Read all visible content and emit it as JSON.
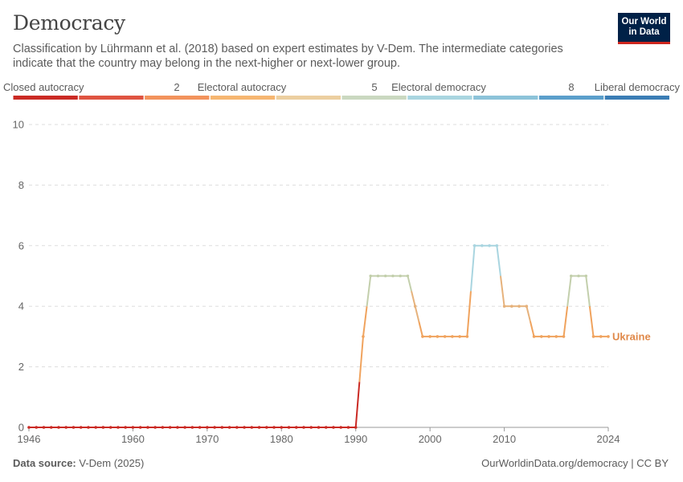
{
  "header": {
    "title": "Democracy",
    "subtitle": "Classification by Lührmann et al. (2018) based on expert estimates by V-Dem. The intermediate categories indicate that the country may belong in the next-higher or next-lower group.",
    "logo_line1": "Our World",
    "logo_line2": "in Data"
  },
  "legend": {
    "labels": [
      "Closed autocracy",
      "2",
      "Electoral autocracy",
      "5",
      "Electoral democracy",
      "8",
      "Liberal democracy"
    ],
    "colors": [
      "#ca2a24",
      "#df5441",
      "#f2935c",
      "#f6b671",
      "#eccfa0",
      "#cad8c0",
      "#a9d5e0",
      "#8cc3d9",
      "#5b9fcb",
      "#3b7db5"
    ]
  },
  "footer": {
    "source_label": "Data source:",
    "source_value": "V-Dem (2025)",
    "credit": "OurWorldinData.org/democracy | CC BY"
  },
  "chart_data": {
    "type": "line",
    "title": "Democracy",
    "ylim": [
      0,
      10
    ],
    "yticks": [
      0,
      2,
      4,
      6,
      8,
      10
    ],
    "xticks": [
      1946,
      1960,
      1970,
      1980,
      1990,
      2000,
      2010,
      2024
    ],
    "grid": true,
    "series": [
      {
        "name": "Ukraine",
        "color": "#e0894a",
        "x": [
          1946,
          1947,
          1948,
          1949,
          1950,
          1951,
          1952,
          1953,
          1954,
          1955,
          1956,
          1957,
          1958,
          1959,
          1960,
          1961,
          1962,
          1963,
          1964,
          1965,
          1966,
          1967,
          1968,
          1969,
          1970,
          1971,
          1972,
          1973,
          1974,
          1975,
          1976,
          1977,
          1978,
          1979,
          1980,
          1981,
          1982,
          1983,
          1984,
          1985,
          1986,
          1987,
          1988,
          1989,
          1990,
          1991,
          1992,
          1993,
          1994,
          1995,
          1996,
          1997,
          1998,
          1999,
          2000,
          2001,
          2002,
          2003,
          2004,
          2005,
          2006,
          2007,
          2008,
          2009,
          2010,
          2011,
          2012,
          2013,
          2014,
          2015,
          2016,
          2017,
          2018,
          2019,
          2020,
          2021,
          2022,
          2023,
          2024
        ],
        "values": [
          0,
          0,
          0,
          0,
          0,
          0,
          0,
          0,
          0,
          0,
          0,
          0,
          0,
          0,
          0,
          0,
          0,
          0,
          0,
          0,
          0,
          0,
          0,
          0,
          0,
          0,
          0,
          0,
          0,
          0,
          0,
          0,
          0,
          0,
          0,
          0,
          0,
          0,
          0,
          0,
          0,
          0,
          0,
          0,
          0,
          3,
          5,
          5,
          5,
          5,
          5,
          5,
          4,
          3,
          3,
          3,
          3,
          3,
          3,
          3,
          6,
          6,
          6,
          6,
          4,
          4,
          4,
          4,
          3,
          3,
          3,
          3,
          3,
          5,
          5,
          5,
          3,
          3,
          3
        ]
      }
    ]
  }
}
